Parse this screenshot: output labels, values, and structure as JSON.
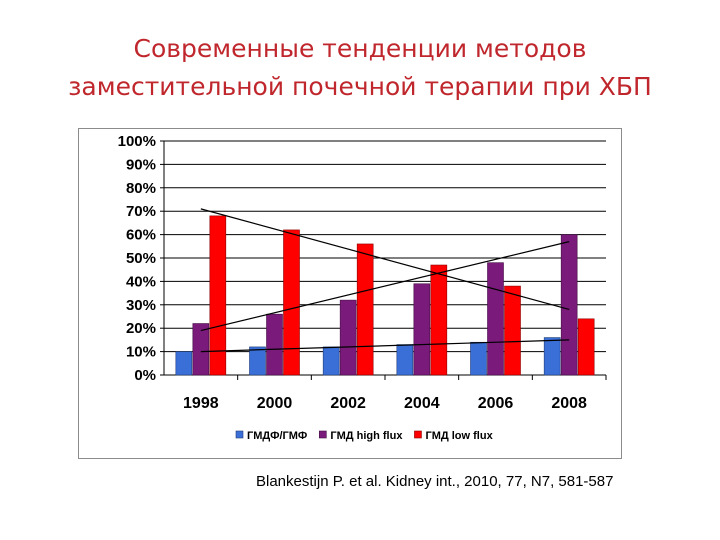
{
  "slide": {
    "title_line1": "Современные тенденции методов",
    "title_line2": "заместительной почечной терапии при ХБП",
    "citation": "Blankestijn P. et al. Kidney int., 2010, 77, N7, 581-587",
    "title_color": "#c0272d"
  },
  "chart_data": {
    "type": "bar",
    "categories": [
      "1998",
      "2000",
      "2002",
      "2004",
      "2006",
      "2008"
    ],
    "y_tick_labels": [
      "0%",
      "10%",
      "20%",
      "30%",
      "40%",
      "50%",
      "60%",
      "70%",
      "80%",
      "90%",
      "100%"
    ],
    "ylim": [
      0,
      100
    ],
    "grid": true,
    "legend_position": "bottom",
    "series": [
      {
        "name": "ГМДФ/ГМФ",
        "color": "#3a6fd8",
        "values": [
          10,
          12,
          12,
          13,
          14,
          16
        ]
      },
      {
        "name": "ГМД high flux",
        "color": "#7a1a7a",
        "values": [
          22,
          26,
          32,
          39,
          48,
          60
        ]
      },
      {
        "name": "ГМД low flux",
        "color": "#ff0000",
        "values": [
          68,
          62,
          56,
          47,
          38,
          24
        ]
      }
    ],
    "trendlines": [
      {
        "series": "ГМДФ/ГМФ",
        "from": [
          10,
          "1998"
        ],
        "to": [
          15,
          "2008"
        ]
      },
      {
        "series": "ГМД high flux",
        "from": [
          19,
          "1998"
        ],
        "to": [
          57,
          "2008"
        ]
      },
      {
        "series": "ГМД low flux",
        "from": [
          71,
          "1998"
        ],
        "to": [
          28,
          "2008"
        ]
      }
    ]
  }
}
